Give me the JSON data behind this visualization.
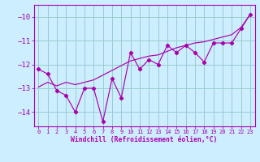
{
  "x_data": [
    0,
    1,
    2,
    3,
    4,
    5,
    6,
    7,
    8,
    9,
    10,
    11,
    12,
    13,
    14,
    15,
    16,
    17,
    18,
    19,
    20,
    21,
    22,
    23
  ],
  "y_actual": [
    -12.2,
    -12.4,
    -13.1,
    -13.3,
    -14.0,
    -13.0,
    -13.0,
    -14.4,
    -12.6,
    -13.4,
    -11.5,
    -12.2,
    -11.8,
    -12.0,
    -11.2,
    -11.5,
    -11.2,
    -11.5,
    -11.9,
    -11.1,
    -11.1,
    -11.1,
    -10.5,
    -9.9
  ],
  "y_trend": [
    -12.95,
    -12.75,
    -12.9,
    -12.75,
    -12.85,
    -12.75,
    -12.65,
    -12.45,
    -12.25,
    -12.05,
    -11.85,
    -11.75,
    -11.65,
    -11.6,
    -11.45,
    -11.3,
    -11.2,
    -11.1,
    -11.05,
    -10.95,
    -10.85,
    -10.75,
    -10.45,
    -9.9
  ],
  "line_color": "#aa00aa",
  "bg_color": "#cceeff",
  "grid_color": "#99cccc",
  "xlabel": "Windchill (Refroidissement éolien,°C)",
  "xlim": [
    -0.5,
    23.5
  ],
  "ylim": [
    -14.6,
    -9.5
  ],
  "yticks": [
    -14,
    -13,
    -12,
    -11,
    -10
  ],
  "xticks": [
    0,
    1,
    2,
    3,
    4,
    5,
    6,
    7,
    8,
    9,
    10,
    11,
    12,
    13,
    14,
    15,
    16,
    17,
    18,
    19,
    20,
    21,
    22,
    23
  ]
}
